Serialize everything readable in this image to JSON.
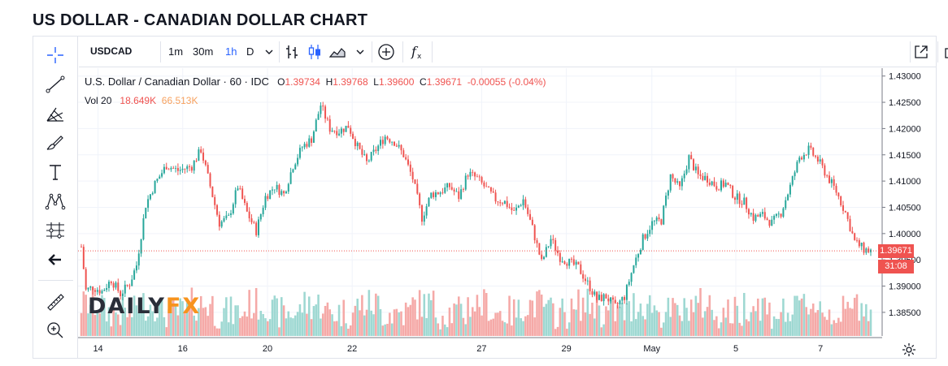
{
  "page_title": "US DOLLAR - CANADIAN DOLLAR CHART",
  "toolbar": {
    "symbol": "USDCAD",
    "intervals": [
      "1m",
      "30m",
      "1h",
      "D"
    ],
    "active_interval": "1h",
    "icons": [
      "chevron-down-icon",
      "bar-chart-icon",
      "candles-icon",
      "area-chart-icon",
      "compare-plus-icon",
      "indicators-fx-icon",
      "fullscreen-icon",
      "camera-icon"
    ]
  },
  "sidebar_icons": [
    "crosshair-icon",
    "trend-line-icon",
    "fib-tool-icon",
    "brush-icon",
    "text-tool-icon",
    "pattern-icon",
    "measure-icon",
    "back-arrow-icon",
    "ruler-icon",
    "zoom-icon"
  ],
  "legend": {
    "symbol_name": "U.S. Dollar / Canadian Dollar · 60 · IDC",
    "o_label": "O",
    "o": "1.39734",
    "h_label": "H",
    "h": "1.39768",
    "l_label": "L",
    "l": "1.39600",
    "c_label": "C",
    "c": "1.39671",
    "change": "-0.00055 (-0.04%)",
    "vol_label": "Vol 20",
    "vol_value": "18.649K",
    "vol_ma": "66.513K"
  },
  "watermark": {
    "part1": "DAILY",
    "part2": "FX"
  },
  "colors": {
    "up": "#26a69a",
    "down": "#ef5350",
    "vol_up": "#9ed8d2",
    "vol_down": "#f5a9a7",
    "accent": "#2962ff"
  },
  "chart_data": {
    "type": "candlestick",
    "instrument": "USDCAD",
    "interval": "1h",
    "y_axis": {
      "ylim": [
        1.3805,
        1.4315
      ],
      "ticks": [
        "1.43000",
        "1.42500",
        "1.42000",
        "1.41500",
        "1.41000",
        "1.40500",
        "1.40000",
        "1.39500",
        "1.39000",
        "1.38500"
      ]
    },
    "x_axis": {
      "tick_labels": [
        "14",
        "16",
        "20",
        "22",
        "27",
        "29",
        "May",
        "5",
        "7"
      ]
    },
    "last_price": "1.39671",
    "countdown": "31:08",
    "close_path": [
      {
        "t": 0,
        "p": 1.3975
      },
      {
        "t": 2,
        "p": 1.3892
      },
      {
        "t": 5,
        "p": 1.3898
      },
      {
        "t": 9,
        "p": 1.389
      },
      {
        "t": 13,
        "p": 1.3912
      },
      {
        "t": 17,
        "p": 1.3885
      },
      {
        "t": 21,
        "p": 1.3905
      },
      {
        "t": 24,
        "p": 1.394
      },
      {
        "t": 28,
        "p": 1.4055
      },
      {
        "t": 32,
        "p": 1.4095
      },
      {
        "t": 37,
        "p": 1.413
      },
      {
        "t": 42,
        "p": 1.412
      },
      {
        "t": 48,
        "p": 1.4128
      },
      {
        "t": 52,
        "p": 1.416
      },
      {
        "t": 56,
        "p": 1.409
      },
      {
        "t": 60,
        "p": 1.402
      },
      {
        "t": 64,
        "p": 1.403
      },
      {
        "t": 68,
        "p": 1.409
      },
      {
        "t": 72,
        "p": 1.404
      },
      {
        "t": 76,
        "p": 1.4005
      },
      {
        "t": 80,
        "p": 1.407
      },
      {
        "t": 84,
        "p": 1.409
      },
      {
        "t": 88,
        "p": 1.4075
      },
      {
        "t": 92,
        "p": 1.413
      },
      {
        "t": 96,
        "p": 1.4165
      },
      {
        "t": 100,
        "p": 1.418
      },
      {
        "t": 104,
        "p": 1.4245
      },
      {
        "t": 108,
        "p": 1.42
      },
      {
        "t": 112,
        "p": 1.4195
      },
      {
        "t": 116,
        "p": 1.4205
      },
      {
        "t": 120,
        "p": 1.4165
      },
      {
        "t": 124,
        "p": 1.4135
      },
      {
        "t": 128,
        "p": 1.416
      },
      {
        "t": 132,
        "p": 1.4185
      },
      {
        "t": 136,
        "p": 1.4175
      },
      {
        "t": 140,
        "p": 1.415
      },
      {
        "t": 144,
        "p": 1.4105
      },
      {
        "t": 148,
        "p": 1.403
      },
      {
        "t": 152,
        "p": 1.4075
      },
      {
        "t": 156,
        "p": 1.408
      },
      {
        "t": 160,
        "p": 1.409
      },
      {
        "t": 164,
        "p": 1.407
      },
      {
        "t": 168,
        "p": 1.4115
      },
      {
        "t": 172,
        "p": 1.4105
      },
      {
        "t": 176,
        "p": 1.4085
      },
      {
        "t": 180,
        "p": 1.4065
      },
      {
        "t": 184,
        "p": 1.406
      },
      {
        "t": 188,
        "p": 1.404
      },
      {
        "t": 192,
        "p": 1.4065
      },
      {
        "t": 196,
        "p": 1.401
      },
      {
        "t": 200,
        "p": 1.3945
      },
      {
        "t": 204,
        "p": 1.399
      },
      {
        "t": 208,
        "p": 1.3955
      },
      {
        "t": 212,
        "p": 1.3945
      },
      {
        "t": 216,
        "p": 1.3935
      },
      {
        "t": 220,
        "p": 1.3905
      },
      {
        "t": 224,
        "p": 1.3875
      },
      {
        "t": 228,
        "p": 1.388
      },
      {
        "t": 232,
        "p": 1.386
      },
      {
        "t": 236,
        "p": 1.388
      },
      {
        "t": 240,
        "p": 1.394
      },
      {
        "t": 244,
        "p": 1.399
      },
      {
        "t": 248,
        "p": 1.402
      },
      {
        "t": 252,
        "p": 1.4025
      },
      {
        "t": 256,
        "p": 1.411
      },
      {
        "t": 260,
        "p": 1.4085
      },
      {
        "t": 264,
        "p": 1.4145
      },
      {
        "t": 268,
        "p": 1.411
      },
      {
        "t": 272,
        "p": 1.4105
      },
      {
        "t": 276,
        "p": 1.409
      },
      {
        "t": 280,
        "p": 1.4095
      },
      {
        "t": 284,
        "p": 1.407
      },
      {
        "t": 288,
        "p": 1.406
      },
      {
        "t": 292,
        "p": 1.403
      },
      {
        "t": 296,
        "p": 1.4035
      },
      {
        "t": 300,
        "p": 1.402
      },
      {
        "t": 304,
        "p": 1.404
      },
      {
        "t": 308,
        "p": 1.409
      },
      {
        "t": 312,
        "p": 1.4145
      },
      {
        "t": 316,
        "p": 1.416
      },
      {
        "t": 320,
        "p": 1.414
      },
      {
        "t": 324,
        "p": 1.411
      },
      {
        "t": 328,
        "p": 1.408
      },
      {
        "t": 332,
        "p": 1.404
      },
      {
        "t": 336,
        "p": 1.3985
      },
      {
        "t": 340,
        "p": 1.397
      },
      {
        "t": 343,
        "p": 1.3967
      }
    ]
  }
}
